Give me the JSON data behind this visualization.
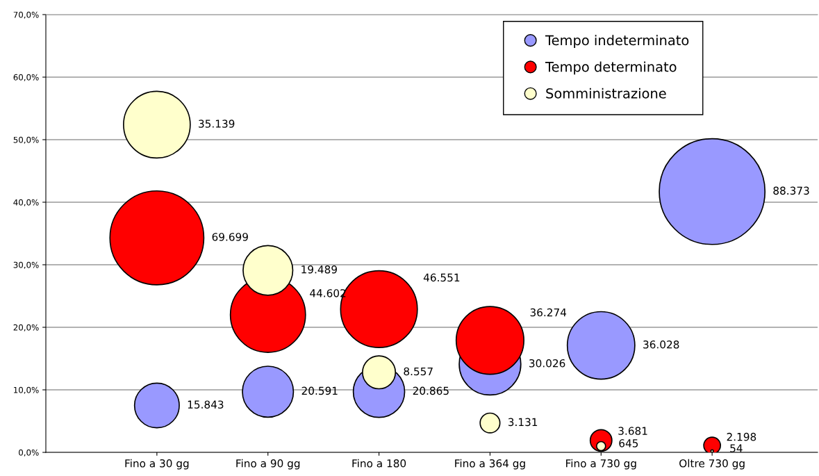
{
  "chart_data": {
    "type": "bubble",
    "categories": [
      "Fino a 30 gg",
      "Fino a 90 gg",
      "Fino a 180",
      "Fino a 364 gg",
      "Fino a 730 gg",
      "Oltre 730 gg"
    ],
    "series": [
      {
        "name": "Tempo indeterminato",
        "color": "#9999ff",
        "values": [
          7.5,
          9.7,
          9.7,
          14.1,
          17.1,
          41.7
        ],
        "sizes": [
          0.179,
          0.233,
          0.236,
          0.34,
          0.408,
          1
        ]
      },
      {
        "name": "Tempo determinato",
        "color": "#ff0000",
        "values": [
          34.3,
          22.0,
          22.9,
          17.9,
          1.9,
          1.1
        ],
        "sizes": [
          0.789,
          0.505,
          0.527,
          0.41,
          0.042,
          0.025
        ]
      },
      {
        "name": "Somministrazione",
        "color": "#ffffcc",
        "values": [
          52.4,
          29.1,
          12.8,
          4.7,
          1.0,
          0.2
        ],
        "sizes": [
          0.398,
          0.221,
          0.097,
          0.035,
          0.0073,
          0.0006
        ]
      }
    ],
    "annotations": [
      "15.843",
      "20.591",
      "20.865",
      "30.026",
      "36.028",
      "88.373",
      "69.699",
      "44.602",
      "46.551",
      "36.274",
      "3.681",
      "2.198",
      "35.139",
      "19.489",
      "8.557",
      "3.131",
      "645",
      "54"
    ],
    "ylim": [
      0,
      70
    ],
    "yticks": [
      {
        "value": 0,
        "label": "0,0%"
      },
      {
        "value": 10,
        "label": "10,0%"
      },
      {
        "value": 20,
        "label": "20,0%"
      },
      {
        "value": 30,
        "label": "30,0%"
      },
      {
        "value": 40,
        "label": "40,0%"
      },
      {
        "value": 50,
        "label": "50,0%"
      },
      {
        "value": 60,
        "label": "60,0%"
      },
      {
        "value": 70,
        "label": "70,0%"
      }
    ],
    "grid": "y",
    "legend": "top right"
  }
}
